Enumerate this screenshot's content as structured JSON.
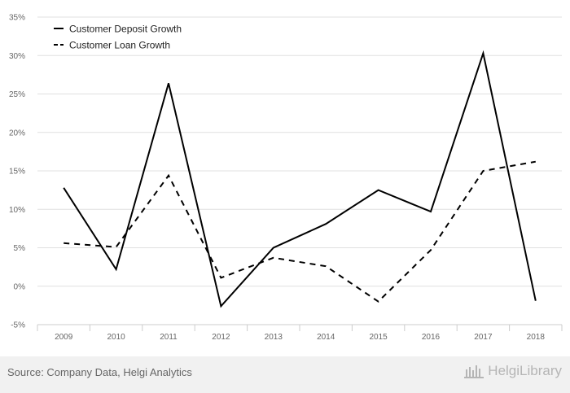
{
  "chart_data": {
    "type": "line",
    "categories": [
      "2009",
      "2010",
      "2011",
      "2012",
      "2013",
      "2014",
      "2015",
      "2016",
      "2017",
      "2018"
    ],
    "series": [
      {
        "name": "Customer Deposit Growth",
        "style": "solid",
        "values": [
          12.8,
          2.2,
          26.4,
          -2.6,
          5.0,
          8.1,
          12.5,
          9.7,
          30.3,
          -1.9
        ]
      },
      {
        "name": "Customer Loan Growth",
        "style": "dashed",
        "values": [
          5.6,
          5.1,
          14.4,
          1.1,
          3.7,
          2.6,
          -2.0,
          4.7,
          15.0,
          16.2
        ]
      }
    ],
    "ylim": [
      -5,
      35
    ],
    "yticks": [
      -5,
      0,
      5,
      10,
      15,
      20,
      25,
      30,
      35
    ],
    "ytick_labels": [
      "-5%",
      "0%",
      "5%",
      "10%",
      "15%",
      "20%",
      "25%",
      "30%",
      "35%"
    ],
    "grid": true,
    "legend_position": "top-left",
    "colors": {
      "line": "#000000",
      "grid": "#e0e0e0",
      "axis": "#cccccc",
      "plot_bg": "#ffffff",
      "page_bg": "#f1f1f1"
    }
  },
  "footer": {
    "source": "Source: Company Data, Helgi Analytics",
    "logo_text": "HelgiLibrary"
  }
}
